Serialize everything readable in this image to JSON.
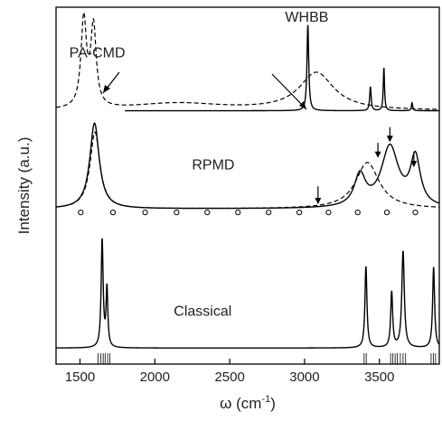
{
  "chart_data": {
    "type": "line",
    "title": "",
    "xlabel": "ω (cm",
    "xlabel_sup": "-1",
    "xlabel_close": ")",
    "ylabel": "Intensity (a.u.)",
    "xlim": [
      1340,
      3900
    ],
    "ylim": [
      0,
      1
    ],
    "x_ticks": [
      1500,
      2000,
      2500,
      3000,
      3500
    ],
    "x_tick_labels": [
      "1500",
      "2000",
      "2500",
      "3000",
      "3500"
    ],
    "y_tick_labels_shown": false,
    "colors": {
      "line": "#000000",
      "axis": "#000000",
      "text": "#222222"
    },
    "panels": [
      {
        "name": "top",
        "baseline": 0.71,
        "labels": [
          {
            "text": "PA-CMD",
            "anchor_x": 1615,
            "anchor_y": 0.86
          },
          {
            "text": "WHBB",
            "anchor_x": 3015,
            "anchor_y": 0.96
          }
        ],
        "series": [
          {
            "name": "PA-CMD",
            "style": "dashed",
            "baseline": 0.71,
            "peaks": [
              {
                "center": 1525,
                "width": 22,
                "height": 0.246
              },
              {
                "center": 1590,
                "width": 22,
                "height": 0.225
              },
              {
                "center": 2150,
                "width": 380,
                "height": 0.02
              },
              {
                "center": 3080,
                "width": 140,
                "height": 0.105
              }
            ]
          },
          {
            "name": "WHBB",
            "style": "solid",
            "baseline": 0.71,
            "x_start": 1800,
            "peaks": [
              {
                "center": 3022,
                "width": 7,
                "height": 0.24
              },
              {
                "center": 3440,
                "width": 6,
                "height": 0.067
              },
              {
                "center": 3530,
                "width": 5,
                "height": 0.12
              },
              {
                "center": 3718,
                "width": 5,
                "height": 0.022
              }
            ]
          }
        ]
      },
      {
        "name": "middle",
        "baseline": 0.435,
        "labels": [
          {
            "text": "RPMD",
            "anchor_x": 2390,
            "anchor_y": 0.545
          }
        ],
        "series": [
          {
            "name": "RPMD-solid",
            "style": "solid",
            "baseline": 0.435,
            "peaks": [
              {
                "center": 1597,
                "width": 38,
                "height": 0.24
              },
              {
                "center": 3370,
                "width": 45,
                "height": 0.087
              },
              {
                "center": 3570,
                "width": 70,
                "height": 0.17
              },
              {
                "center": 3740,
                "width": 40,
                "height": 0.135
              }
            ]
          },
          {
            "name": "RPMD-dashed",
            "style": "dashed",
            "baseline": 0.435,
            "peaks": [
              {
                "center": 1600,
                "width": 40,
                "height": 0.215
              },
              {
                "center": 3420,
                "width": 95,
                "height": 0.13
              }
            ]
          }
        ],
        "markers_circle": [
          1505,
          1720,
          1935,
          2145,
          2350,
          2555,
          2760,
          2965,
          3160,
          3355,
          3550,
          3740
        ],
        "markers_circle_y": 0.425,
        "arrows": [
          {
            "x": 3090,
            "y_top": 0.498,
            "y_tip": 0.448
          },
          {
            "x": 3490,
            "y_top": 0.62,
            "y_tip": 0.578
          },
          {
            "x": 3570,
            "y_top": 0.664,
            "y_tip": 0.622
          },
          {
            "x": 3730,
            "y_top": 0.594,
            "y_tip": 0.552
          }
        ]
      },
      {
        "name": "bottom",
        "baseline": 0.045,
        "labels": [
          {
            "text": "Classical",
            "anchor_x": 2320,
            "anchor_y": 0.135
          }
        ],
        "series": [
          {
            "name": "Classical",
            "style": "solid",
            "baseline": 0.045,
            "peaks": [
              {
                "center": 1648,
                "width": 8,
                "height": 0.3
              },
              {
                "center": 1680,
                "width": 7,
                "height": 0.163
              },
              {
                "center": 3410,
                "width": 8,
                "height": 0.228
              },
              {
                "center": 3582,
                "width": 8,
                "height": 0.155
              },
              {
                "center": 3658,
                "width": 10,
                "height": 0.27
              },
              {
                "center": 3862,
                "width": 8,
                "height": 0.226
              }
            ]
          }
        ],
        "stick_ticks": [
          1620,
          1640,
          1655,
          1668,
          1685,
          1700,
          3398,
          3412,
          3575,
          3590,
          3605,
          3620,
          3640,
          3658,
          3675,
          3845,
          3860,
          3875
        ]
      }
    ]
  }
}
